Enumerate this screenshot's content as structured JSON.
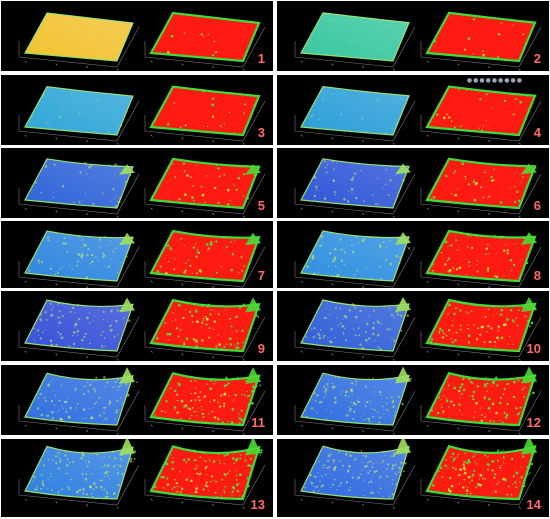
{
  "figure": {
    "panels": [
      {
        "label": "1",
        "left_color": "#f2c230",
        "right_color": "#ff1b12",
        "deform": 0.0,
        "legend": ""
      },
      {
        "label": "2",
        "left_color": "#39c7a0",
        "right_color": "#ff1b12",
        "deform": 0.02,
        "legend": ""
      },
      {
        "label": "3",
        "left_color": "#2fa6d8",
        "right_color": "#ff1b12",
        "deform": 0.05,
        "legend": ""
      },
      {
        "label": "4",
        "left_color": "#2b9fd8",
        "right_color": "#ff1b12",
        "deform": 0.07,
        "legend": "●●●●●●●●●"
      },
      {
        "label": "5",
        "left_color": "#2f63d8",
        "right_color": "#ff1b12",
        "deform": 0.18,
        "legend": ""
      },
      {
        "label": "6",
        "left_color": "#2f56d8",
        "right_color": "#ff1b12",
        "deform": 0.2,
        "legend": ""
      },
      {
        "label": "7",
        "left_color": "#2f86e0",
        "right_color": "#ff1b12",
        "deform": 0.32,
        "legend": ""
      },
      {
        "label": "8",
        "left_color": "#2f8fe0",
        "right_color": "#ff1b12",
        "deform": 0.34,
        "legend": ""
      },
      {
        "label": "9",
        "left_color": "#3450d8",
        "right_color": "#ff1b12",
        "deform": 0.48,
        "legend": ""
      },
      {
        "label": "10",
        "left_color": "#2f5ed8",
        "right_color": "#ff1b12",
        "deform": 0.5,
        "legend": ""
      },
      {
        "label": "11",
        "left_color": "#2f6fe0",
        "right_color": "#ff1b12",
        "deform": 0.62,
        "legend": ""
      },
      {
        "label": "12",
        "left_color": "#2f6ee0",
        "right_color": "#ff1b12",
        "deform": 0.64,
        "legend": ""
      },
      {
        "label": "13",
        "left_color": "#2f7fe0",
        "right_color": "#ff1b12",
        "deform": 0.76,
        "legend": ""
      },
      {
        "label": "14",
        "left_color": "#2f6ae0",
        "right_color": "#ff1b12",
        "deform": 0.8,
        "legend": ""
      }
    ]
  }
}
